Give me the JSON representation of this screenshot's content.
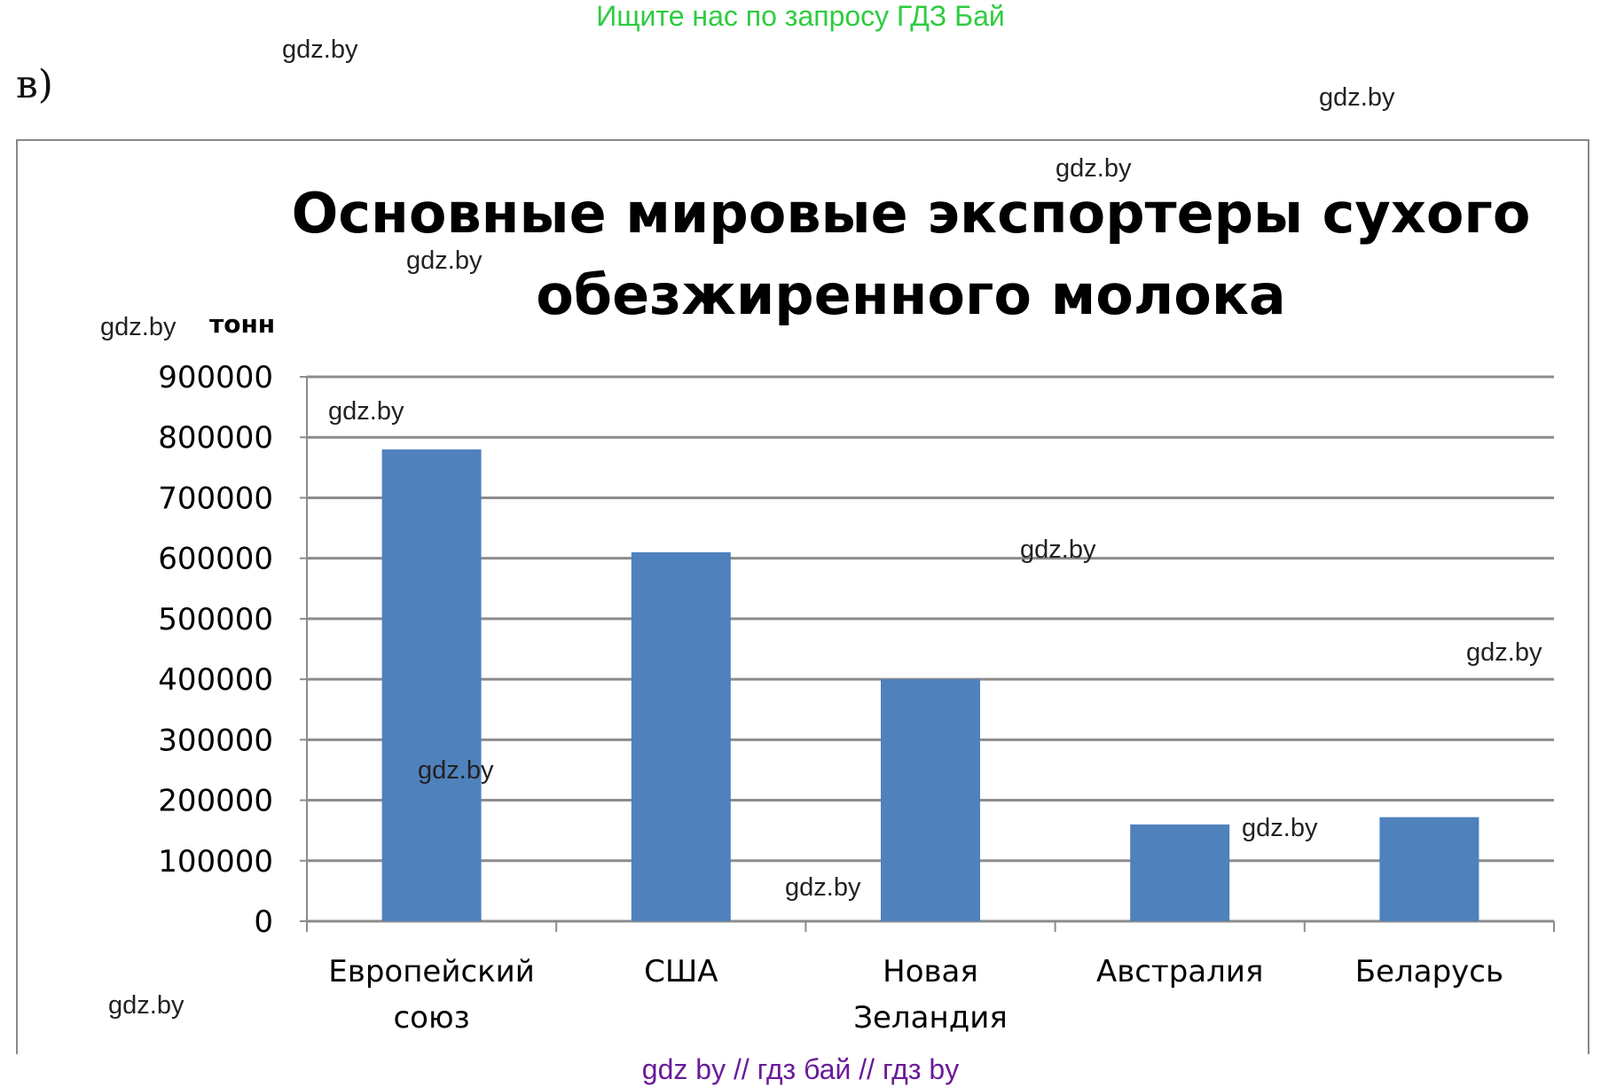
{
  "banner": "Ищите нас по запросу ГДЗ Бай",
  "part_label": "в)",
  "footer": "gdz by  //  гдз бай  //  гдз by",
  "watermarks": [
    "gdz.by",
    "gdz.by",
    "gdz.by",
    "gdz.by",
    "gdz.by",
    "gdz.by",
    "gdz.by",
    "gdz.by",
    "gdz.by",
    "gdz.by",
    "gdz.by"
  ],
  "colors": {
    "bar": "#4f81bd",
    "grid": "#8c8c8c",
    "banner": "#2ecc40",
    "footer": "#6a1b9a"
  },
  "chart_data": {
    "type": "bar",
    "title_lines": [
      "Основные мировые экспортеры сухого",
      "обезжиренного молока"
    ],
    "ylabel": "тонн",
    "categories": [
      [
        "Европейский",
        "союз"
      ],
      [
        "США"
      ],
      [
        "Новая",
        "Зеландия"
      ],
      [
        "Австралия"
      ],
      [
        "Беларусь"
      ]
    ],
    "values": [
      780000,
      610000,
      400000,
      160000,
      172000
    ],
    "ylim": [
      0,
      900000
    ],
    "yticks": [
      "0",
      "100000",
      "200000",
      "300000",
      "400000",
      "500000",
      "600000",
      "700000",
      "800000",
      "900000"
    ],
    "grid": true,
    "legend": "none"
  }
}
